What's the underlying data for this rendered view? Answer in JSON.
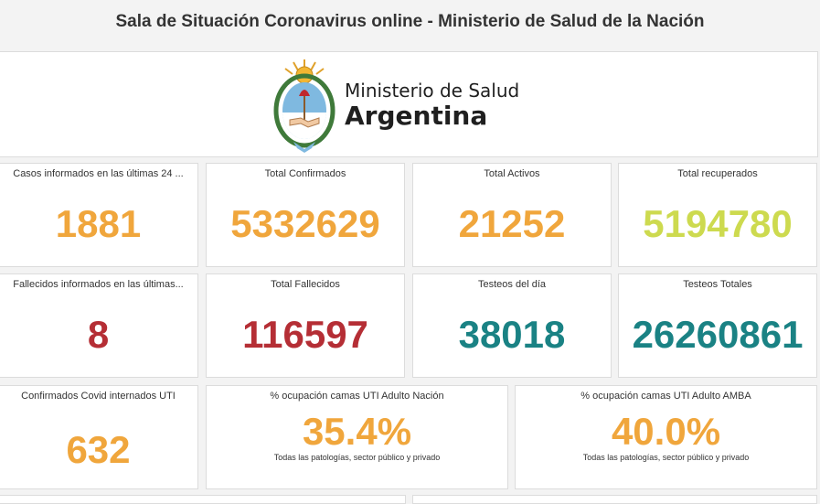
{
  "page": {
    "title": "Sala de Situación Coronavirus online - Ministerio de Salud de la Nación"
  },
  "banner": {
    "line1": "Ministerio de Salud",
    "line2": "Argentina",
    "emblem": "escudo-nacional-icon"
  },
  "colors": {
    "orange": "#f0a63c",
    "lime": "#cdda4f",
    "crimson": "#b52e35",
    "teal": "#1a8284"
  },
  "row1": [
    {
      "label": "Casos informados en las últimas 24 ...",
      "value": "1881"
    },
    {
      "label": "Total Confirmados",
      "value": "5332629"
    },
    {
      "label": "Total Activos",
      "value": "21252"
    },
    {
      "label": "Total recuperados",
      "value": "5194780"
    }
  ],
  "row2": [
    {
      "label": "Fallecidos informados en las últimas...",
      "value": "8"
    },
    {
      "label": "Total Fallecidos",
      "value": "116597"
    },
    {
      "label": "Testeos del día",
      "value": "38018"
    },
    {
      "label": "Testeos Totales",
      "value": "26260861"
    }
  ],
  "row3": [
    {
      "label": "Confirmados Covid internados UTI",
      "value": "632"
    },
    {
      "label": "% ocupación camas UTI Adulto Nación",
      "value": "35.4%",
      "sub": "Todas las patologías, sector público y privado"
    },
    {
      "label": "% ocupación camas UTI Adulto AMBA",
      "value": "40.0%",
      "sub": "Todas las patologías, sector público y privado"
    }
  ]
}
